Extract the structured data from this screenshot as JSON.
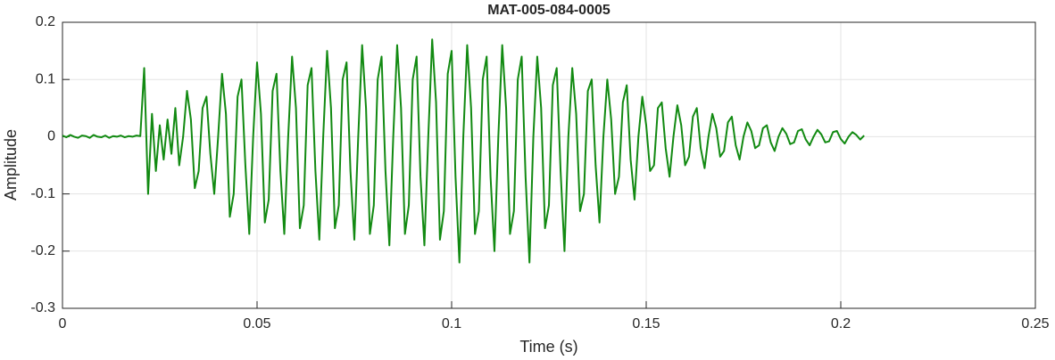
{
  "chart_data": {
    "type": "line",
    "title": "MAT-005-084-0005",
    "x_label": "Time (s)",
    "y_label": "Amplitude",
    "xlim": [
      0,
      0.25
    ],
    "xticks": [
      0,
      0.05,
      0.1,
      0.15,
      0.2,
      0.25
    ],
    "ylim": [
      -0.3,
      0.2
    ],
    "yticks": [
      -0.3,
      -0.2,
      -0.1,
      0,
      0.1,
      0.2
    ],
    "grid": true,
    "x": [
      0,
      0.001,
      0.002,
      0.003,
      0.004,
      0.005,
      0.006,
      0.007,
      0.008,
      0.009,
      0.01,
      0.011,
      0.012,
      0.013,
      0.014,
      0.015,
      0.016,
      0.017,
      0.018,
      0.019,
      0.02,
      0.021,
      0.022,
      0.023,
      0.024,
      0.025,
      0.026,
      0.027,
      0.028,
      0.029,
      0.03,
      0.031,
      0.032,
      0.033,
      0.034,
      0.035,
      0.036,
      0.037,
      0.038,
      0.039,
      0.04,
      0.041,
      0.042,
      0.043,
      0.044,
      0.045,
      0.046,
      0.047,
      0.048,
      0.049,
      0.05,
      0.051,
      0.052,
      0.053,
      0.054,
      0.055,
      0.056,
      0.057,
      0.058,
      0.059,
      0.06,
      0.061,
      0.062,
      0.063,
      0.064,
      0.065,
      0.066,
      0.067,
      0.068,
      0.069,
      0.07,
      0.071,
      0.072,
      0.073,
      0.074,
      0.075,
      0.076,
      0.077,
      0.078,
      0.079,
      0.08,
      0.081,
      0.082,
      0.083,
      0.084,
      0.085,
      0.086,
      0.087,
      0.088,
      0.089,
      0.09,
      0.091,
      0.092,
      0.093,
      0.094,
      0.095,
      0.096,
      0.097,
      0.098,
      0.099,
      0.1,
      0.101,
      0.102,
      0.103,
      0.104,
      0.105,
      0.106,
      0.107,
      0.108,
      0.109,
      0.11,
      0.111,
      0.112,
      0.113,
      0.114,
      0.115,
      0.116,
      0.117,
      0.118,
      0.119,
      0.12,
      0.121,
      0.122,
      0.123,
      0.124,
      0.125,
      0.126,
      0.127,
      0.128,
      0.129,
      0.13,
      0.131,
      0.132,
      0.133,
      0.134,
      0.135,
      0.136,
      0.137,
      0.138,
      0.139,
      0.14,
      0.141,
      0.142,
      0.143,
      0.144,
      0.145,
      0.146,
      0.147,
      0.148,
      0.149,
      0.15,
      0.151,
      0.152,
      0.153,
      0.154,
      0.155,
      0.156,
      0.157,
      0.158,
      0.159,
      0.16,
      0.161,
      0.162,
      0.163,
      0.164,
      0.165,
      0.166,
      0.167,
      0.168,
      0.169,
      0.17,
      0.171,
      0.172,
      0.173,
      0.174,
      0.175,
      0.176,
      0.177,
      0.178,
      0.179,
      0.18,
      0.181,
      0.182,
      0.183,
      0.184,
      0.185,
      0.186,
      0.187,
      0.188,
      0.189,
      0.19,
      0.191,
      0.192,
      0.193,
      0.194,
      0.195,
      0.196,
      0.197,
      0.198,
      0.199,
      0.2,
      0.201,
      0.202,
      0.203,
      0.204,
      0.205,
      0.206
    ],
    "series": [
      {
        "color": "#128a12",
        "values": [
          0.002,
          -0.001,
          0.003,
          0,
          -0.002,
          0.002,
          0.001,
          -0.002,
          0.003,
          0,
          -0.001,
          0.002,
          -0.002,
          0.001,
          0,
          0.002,
          -0.001,
          0.001,
          0,
          0.002,
          0.001,
          0.12,
          -0.1,
          0.04,
          -0.06,
          0.02,
          -0.04,
          0.03,
          -0.03,
          0.05,
          -0.05,
          0,
          0.08,
          0.03,
          -0.09,
          -0.06,
          0.05,
          0.07,
          -0.03,
          -0.1,
          0,
          0.11,
          0.04,
          -0.14,
          -0.1,
          0.07,
          0.1,
          -0.05,
          -0.17,
          0,
          0.13,
          0.04,
          -0.15,
          -0.11,
          0.08,
          0.11,
          -0.06,
          -0.17,
          0,
          0.14,
          0.05,
          -0.16,
          -0.12,
          0.09,
          0.12,
          -0.06,
          -0.18,
          0,
          0.15,
          0.05,
          -0.16,
          -0.12,
          0.1,
          0.13,
          -0.06,
          -0.18,
          0,
          0.16,
          0.05,
          -0.17,
          -0.12,
          0.1,
          0.14,
          -0.06,
          -0.19,
          0,
          0.16,
          0.05,
          -0.17,
          -0.12,
          0.1,
          0.14,
          -0.07,
          -0.19,
          0,
          0.17,
          0.06,
          -0.18,
          -0.13,
          0.11,
          0.15,
          -0.07,
          -0.22,
          0,
          0.16,
          0.05,
          -0.17,
          -0.13,
          0.1,
          0.14,
          -0.07,
          -0.2,
          0,
          0.16,
          0.05,
          -0.17,
          -0.13,
          0.1,
          0.14,
          -0.07,
          -0.22,
          0,
          0.14,
          0.05,
          -0.16,
          -0.12,
          0.09,
          0.12,
          -0.06,
          -0.2,
          0,
          0.12,
          0.04,
          -0.13,
          -0.1,
          0.08,
          0.1,
          -0.05,
          -0.15,
          0,
          0.1,
          0.03,
          -0.1,
          -0.07,
          0.06,
          0.09,
          -0.04,
          -0.11,
          0,
          0.07,
          0.02,
          -0.06,
          -0.05,
          0.05,
          0.06,
          -0.02,
          -0.07,
          0,
          0.055,
          0.02,
          -0.05,
          -0.035,
          0.035,
          0.05,
          -0.02,
          -0.055,
          0,
          0.04,
          0.015,
          -0.035,
          -0.025,
          0.025,
          0.035,
          -0.015,
          -0.04,
          0,
          0.025,
          0.01,
          -0.02,
          -0.015,
          0.015,
          0.02,
          -0.01,
          -0.025,
          0,
          0.015,
          0.005,
          -0.013,
          -0.01,
          0.01,
          0.013,
          -0.005,
          -0.015,
          0,
          0.012,
          0.004,
          -0.01,
          -0.008,
          0.008,
          0.01,
          -0.004,
          -0.012,
          0,
          0.008,
          0.003,
          -0.005,
          0.002
        ]
      }
    ]
  }
}
